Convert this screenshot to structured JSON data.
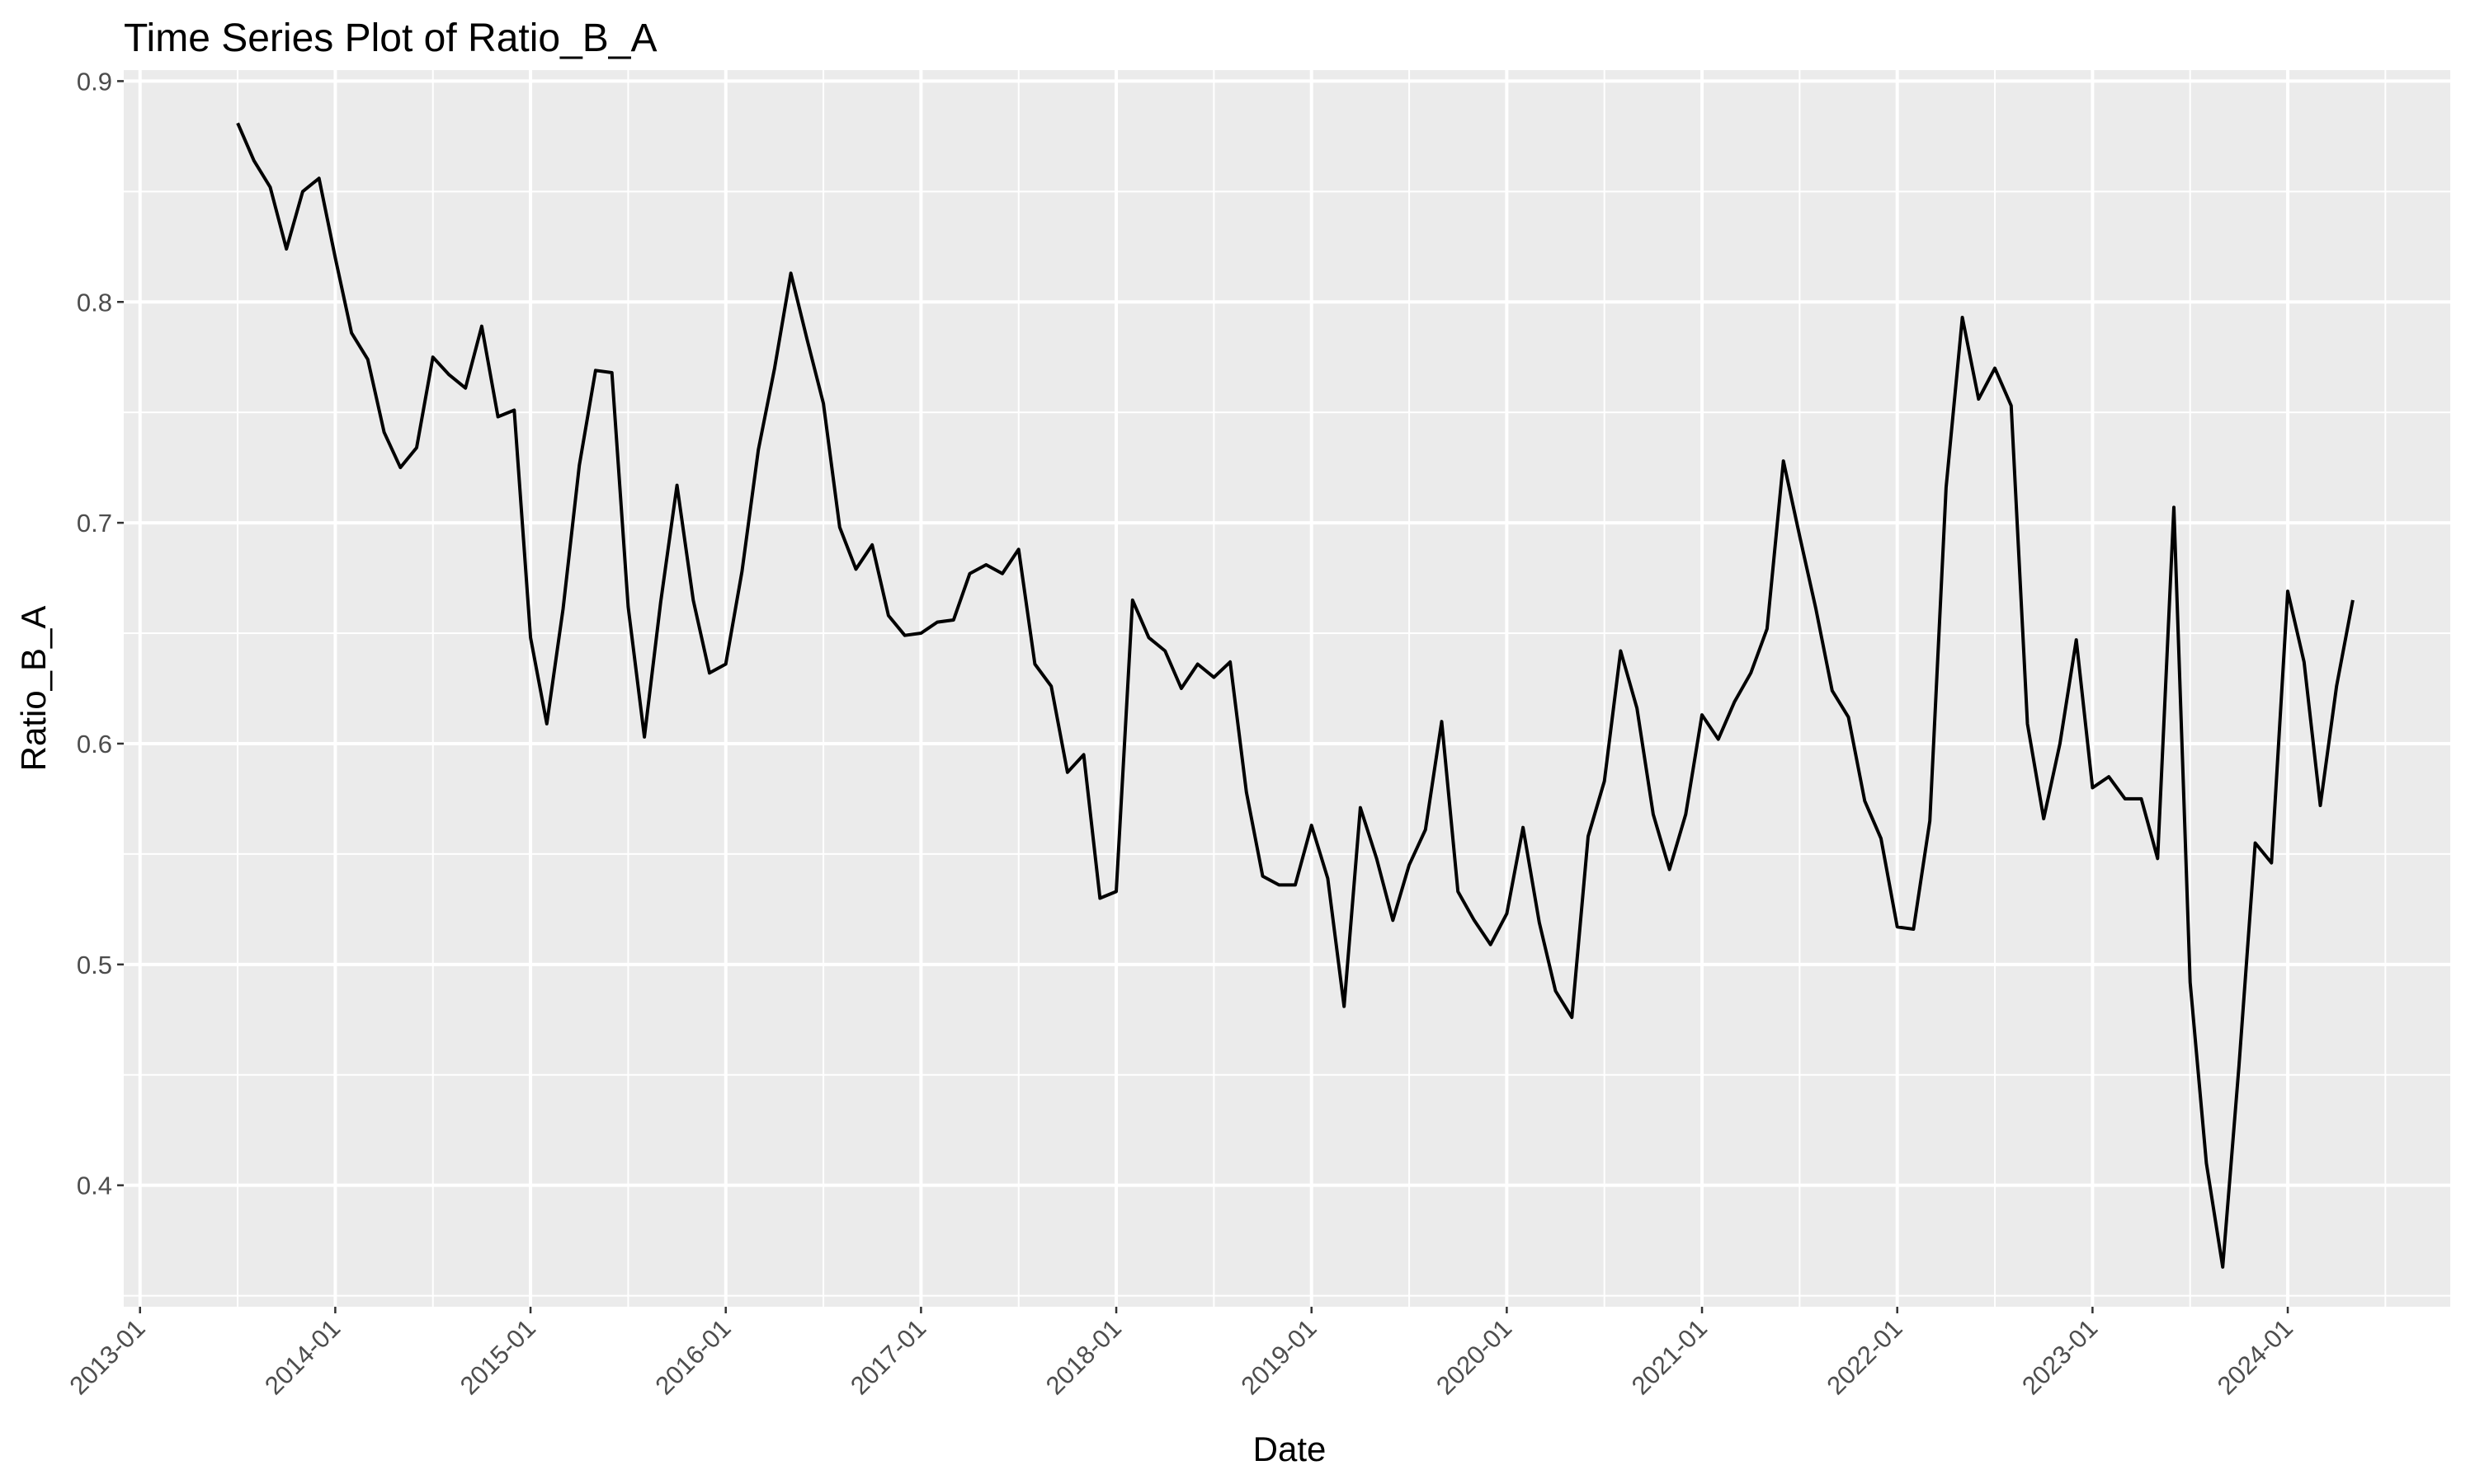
{
  "chart_data": {
    "type": "line",
    "title": "Time Series Plot of Ratio_B_A",
    "xlabel": "Date",
    "ylabel": "Ratio_B_A",
    "x_tick_labels": [
      "2013-01",
      "2014-01",
      "2015-01",
      "2016-01",
      "2017-01",
      "2018-01",
      "2019-01",
      "2020-01",
      "2021-01",
      "2022-01",
      "2023-01",
      "2024-01"
    ],
    "y_ticks": [
      0.4,
      0.5,
      0.6,
      0.7,
      0.8,
      0.9
    ],
    "y_tick_labels": [
      "0.4",
      "0.5",
      "0.6",
      "0.7",
      "0.8",
      "0.9"
    ],
    "xlim": [
      "2012-12-01",
      "2024-10-31"
    ],
    "ylim": [
      0.345,
      0.905
    ],
    "grid": true,
    "background": "#ebebeb",
    "line_color": "#000000",
    "series": [
      {
        "x": [
          "2013-07",
          "2013-08",
          "2013-09",
          "2013-10",
          "2013-11",
          "2013-12",
          "2014-01",
          "2014-02",
          "2014-03",
          "2014-04",
          "2014-05",
          "2014-06",
          "2014-07",
          "2014-08",
          "2014-09",
          "2014-10",
          "2014-11",
          "2014-12",
          "2015-01",
          "2015-02",
          "2015-03",
          "2015-04",
          "2015-05",
          "2015-06",
          "2015-07",
          "2015-08",
          "2015-09",
          "2015-10",
          "2015-11",
          "2015-12",
          "2016-01",
          "2016-02",
          "2016-03",
          "2016-04",
          "2016-05",
          "2016-06",
          "2016-07",
          "2016-08",
          "2016-09",
          "2016-10",
          "2016-11",
          "2016-12",
          "2017-01",
          "2017-02",
          "2017-03",
          "2017-04",
          "2017-05",
          "2017-06",
          "2017-07",
          "2017-08",
          "2017-09",
          "2017-10",
          "2017-11",
          "2017-12",
          "2018-01",
          "2018-02",
          "2018-03",
          "2018-04",
          "2018-05",
          "2018-06",
          "2018-07",
          "2018-08",
          "2018-09",
          "2018-10",
          "2018-11",
          "2018-12",
          "2019-01",
          "2019-02",
          "2019-03",
          "2019-04",
          "2019-05",
          "2019-06",
          "2019-07",
          "2019-08",
          "2019-09",
          "2019-10",
          "2019-11",
          "2019-12",
          "2020-01",
          "2020-02",
          "2020-03",
          "2020-04",
          "2020-05",
          "2020-06",
          "2020-07",
          "2020-08",
          "2020-09",
          "2020-10",
          "2020-11",
          "2020-12",
          "2021-01",
          "2021-02",
          "2021-03",
          "2021-04",
          "2021-05",
          "2021-06",
          "2021-07",
          "2021-08",
          "2021-09",
          "2021-10",
          "2021-11",
          "2021-12",
          "2022-01",
          "2022-02",
          "2022-03",
          "2022-04",
          "2022-05",
          "2022-06",
          "2022-07",
          "2022-08",
          "2022-09",
          "2022-10",
          "2022-11",
          "2022-12",
          "2023-01",
          "2023-02",
          "2023-03",
          "2023-04",
          "2023-05",
          "2023-06",
          "2023-07",
          "2023-08",
          "2023-09",
          "2023-10",
          "2023-11",
          "2023-12",
          "2024-01",
          "2024-02",
          "2024-03",
          "2024-04",
          "2024-05"
        ],
        "values": [
          0.881,
          0.864,
          0.852,
          0.824,
          0.85,
          0.856,
          0.82,
          0.786,
          0.774,
          0.741,
          0.725,
          0.734,
          0.775,
          0.767,
          0.761,
          0.789,
          0.748,
          0.751,
          0.648,
          0.609,
          0.661,
          0.726,
          0.769,
          0.768,
          0.662,
          0.603,
          0.664,
          0.717,
          0.665,
          0.632,
          0.636,
          0.678,
          0.733,
          0.77,
          0.813,
          0.783,
          0.754,
          0.698,
          0.679,
          0.69,
          0.658,
          0.649,
          0.65,
          0.655,
          0.656,
          0.677,
          0.681,
          0.677,
          0.688,
          0.636,
          0.626,
          0.587,
          0.595,
          0.53,
          0.533,
          0.665,
          0.648,
          0.642,
          0.625,
          0.636,
          0.63,
          0.637,
          0.578,
          0.54,
          0.536,
          0.536,
          0.563,
          0.539,
          0.481,
          0.571,
          0.548,
          0.52,
          0.545,
          0.561,
          0.61,
          0.533,
          0.52,
          0.509,
          0.523,
          0.562,
          0.519,
          0.488,
          0.476,
          0.558,
          0.583,
          0.642,
          0.616,
          0.568,
          0.543,
          0.568,
          0.613,
          0.602,
          0.619,
          0.632,
          0.652,
          0.728,
          0.694,
          0.661,
          0.624,
          0.612,
          0.574,
          0.557,
          0.517,
          0.516,
          0.565,
          0.716,
          0.793,
          0.756,
          0.77,
          0.753,
          0.609,
          0.566,
          0.6,
          0.647,
          0.58,
          0.585,
          0.575,
          0.575,
          0.548,
          0.707,
          0.492,
          0.41,
          0.363,
          0.454,
          0.555,
          0.546,
          0.669,
          0.637,
          0.572,
          0.626,
          0.665
        ]
      }
    ]
  }
}
